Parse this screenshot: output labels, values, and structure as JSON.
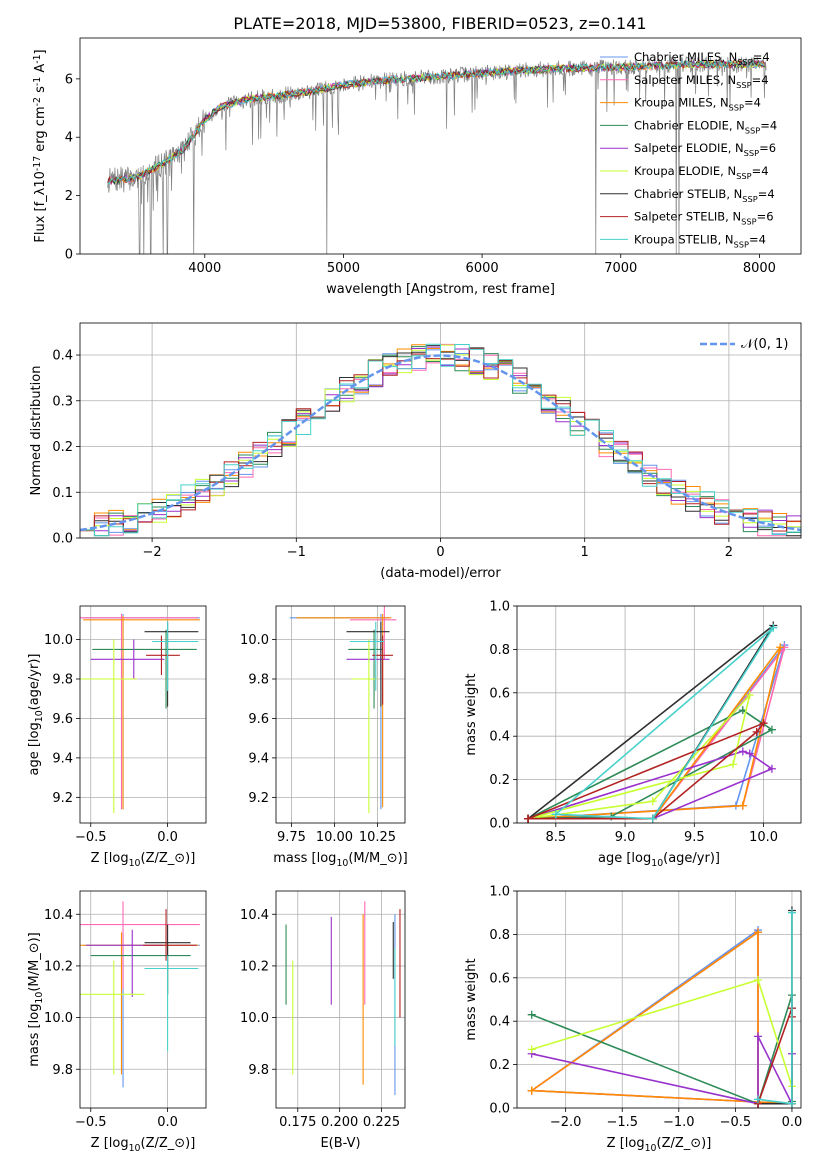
{
  "figure_title": "PLATE=2018, MJD=53800, FIBERID=0523, z=0.141",
  "colors": {
    "series": [
      "#6495ed",
      "#ff69b4",
      "#ff8c00",
      "#2e8b57",
      "#9932cc",
      "#c8ff32",
      "#2f2f2f",
      "#b22222",
      "#48d1cc"
    ],
    "data_spectrum": "#808080",
    "normal_curve": "#6495ed"
  },
  "models": [
    {
      "name": "Chabrier MILES, N$_{SSP}$=4",
      "imf": "Chabrier",
      "lib": "MILES",
      "nssp": "4"
    },
    {
      "name": "Salpeter MILES, N$_{SSP}$=4",
      "imf": "Salpeter",
      "lib": "MILES",
      "nssp": "4"
    },
    {
      "name": "Kroupa MILES, N$_{SSP}$=4",
      "imf": "Kroupa",
      "lib": "MILES",
      "nssp": "4"
    },
    {
      "name": "Chabrier ELODIE, N$_{SSP}$=4",
      "imf": "Chabrier",
      "lib": "ELODIE",
      "nssp": "4"
    },
    {
      "name": "Salpeter ELODIE, N$_{SSP}$=6",
      "imf": "Salpeter",
      "lib": "ELODIE",
      "nssp": "6"
    },
    {
      "name": "Kroupa ELODIE, N$_{SSP}$=4",
      "imf": "Kroupa",
      "lib": "ELODIE",
      "nssp": "4"
    },
    {
      "name": "Chabrier STELIB, N$_{SSP}$=4",
      "imf": "Chabrier",
      "lib": "STELIB",
      "nssp": "4"
    },
    {
      "name": "Salpeter STELIB, N$_{SSP}$=6",
      "imf": "Salpeter",
      "lib": "STELIB",
      "nssp": "6"
    },
    {
      "name": "Kroupa STELIB, N$_{SSP}$=4",
      "imf": "Kroupa",
      "lib": "STELIB",
      "nssp": "4"
    }
  ],
  "chart_data": [
    {
      "id": "spectrum",
      "type": "line",
      "xlabel": "wavelength [Angstrom, rest frame]",
      "ylabel": "Flux [f$_\\lambda$10$^{-17}$ erg cm$^{-2}$ s$^{-1}$ A$^{-1}$]",
      "xlim": [
        3100,
        8300
      ],
      "ylim": [
        0,
        7.4
      ],
      "xticks": [
        4000,
        5000,
        6000,
        7000,
        8000
      ],
      "yticks": [
        0,
        2,
        4,
        6
      ],
      "grid": false,
      "legend": "upper right",
      "continuum_knots": {
        "x": [
          3300,
          3500,
          3700,
          3850,
          4000,
          4100,
          4300,
          4500,
          4800,
          5000,
          5300,
          5600,
          6000,
          6500,
          7000,
          7500,
          8000,
          8050
        ],
        "y": [
          2.5,
          2.6,
          3.1,
          3.6,
          4.6,
          5.0,
          5.3,
          5.4,
          5.6,
          5.8,
          5.95,
          6.05,
          6.2,
          6.35,
          6.4,
          6.5,
          6.5,
          6.45
        ]
      },
      "data_range": [
        3300,
        8050
      ],
      "dropouts": [
        3530,
        3560,
        3610,
        3700,
        3730,
        3920,
        4880,
        6820,
        7400,
        7420
      ]
    },
    {
      "id": "residuals",
      "type": "histogram",
      "xlabel": "(data-model)/error",
      "ylabel": "Normed distribution",
      "xlim": [
        -2.5,
        2.5
      ],
      "ylim": [
        0,
        0.47
      ],
      "xticks": [
        -2,
        -1,
        0,
        1,
        2
      ],
      "yticks": [
        0.0,
        0.1,
        0.2,
        0.3,
        0.4
      ],
      "grid": true,
      "legend": "upper right",
      "legend_label": "$\\mathcal{N}(0, 1)$",
      "bin_width": 0.1,
      "bin_start": -2.5
    },
    {
      "id": "age-vs-Z",
      "type": "errorbar",
      "xlabel": "Z [log$_{10}$(Z/Z$_\\odot$)]",
      "ylabel": "age  [log$_{10}$(age/yr)]",
      "xlim": [
        -0.57,
        0.25
      ],
      "ylim": [
        9.07,
        10.17
      ],
      "xticks": [
        -0.5,
        0.0
      ],
      "yticks": [
        9.2,
        9.4,
        9.6,
        9.8,
        10.0
      ],
      "grid": true,
      "points": [
        {
          "x": -0.29,
          "y": 10.11,
          "xerr": [
            0.26,
            0.5
          ],
          "yerr": [
            0.97,
            0.02
          ]
        },
        {
          "x": -0.3,
          "y": 10.11,
          "xerr": [
            0.27,
            0.5
          ],
          "yerr": [
            0.97,
            0.02
          ]
        },
        {
          "x": -0.29,
          "y": 10.1,
          "xerr": [
            0.26,
            0.5
          ],
          "yerr": [
            0.96,
            0.02
          ]
        },
        {
          "x": -0.01,
          "y": 9.95,
          "xerr": [
            0.48,
            0.2
          ],
          "yerr": [
            0.3,
            0.1
          ]
        },
        {
          "x": -0.22,
          "y": 9.9,
          "xerr": [
            0.28,
            0.2
          ],
          "yerr": [
            0.1,
            0.1
          ]
        },
        {
          "x": -0.35,
          "y": 9.8,
          "xerr": [
            0.25,
            0.15
          ],
          "yerr": [
            0.68,
            0.2
          ]
        },
        {
          "x": 0.0,
          "y": 10.04,
          "xerr": [
            0.15,
            0.2
          ],
          "yerr": [
            0.38,
            0.05
          ]
        },
        {
          "x": -0.04,
          "y": 9.92,
          "xerr": [
            0.1,
            0.12
          ],
          "yerr": [
            0.1,
            0.1
          ]
        },
        {
          "x": 0.0,
          "y": 9.99,
          "xerr": [
            0.1,
            0.2
          ],
          "yerr": [
            0.25,
            0.1
          ]
        }
      ]
    },
    {
      "id": "age-vs-mass",
      "type": "errorbar",
      "xlabel": "mass [log$_{10}$(M/M$_\\odot$)]",
      "ylabel": "",
      "xlim": [
        9.66,
        10.41
      ],
      "ylim": [
        9.07,
        10.17
      ],
      "xticks": [
        9.75,
        10.0,
        10.25
      ],
      "xticklabels": [
        "9.75",
        "10.00",
        "10.25"
      ],
      "yticks": [
        9.2,
        9.4,
        9.6,
        9.8,
        10.0
      ],
      "grid": true,
      "points": [
        {
          "x": 10.27,
          "y": 10.11,
          "xerr": [
            0.53,
            0.05
          ],
          "yerr": [
            0.97,
            0.02
          ]
        },
        {
          "x": 10.29,
          "y": 10.1,
          "xerr": [
            0.2,
            0.07
          ],
          "yerr": [
            0.2,
            0.08
          ]
        },
        {
          "x": 10.28,
          "y": 10.11,
          "xerr": [
            0.5,
            0.05
          ],
          "yerr": [
            0.96,
            0.02
          ]
        },
        {
          "x": 10.23,
          "y": 9.95,
          "xerr": [
            0.15,
            0.05
          ],
          "yerr": [
            0.3,
            0.1
          ]
        },
        {
          "x": 10.27,
          "y": 9.9,
          "xerr": [
            0.2,
            0.05
          ],
          "yerr": [
            0.1,
            0.1
          ]
        },
        {
          "x": 10.2,
          "y": 9.8,
          "xerr": [
            0.1,
            0.05
          ],
          "yerr": [
            0.68,
            0.2
          ]
        },
        {
          "x": 10.27,
          "y": 10.04,
          "xerr": [
            0.2,
            0.05
          ],
          "yerr": [
            0.38,
            0.05
          ]
        },
        {
          "x": 10.28,
          "y": 9.92,
          "xerr": [
            0.06,
            0.06
          ],
          "yerr": [
            0.25,
            0.1
          ]
        },
        {
          "x": 10.24,
          "y": 9.99,
          "xerr": [
            0.15,
            0.05
          ],
          "yerr": [
            0.25,
            0.1
          ]
        }
      ]
    },
    {
      "id": "weight-vs-age",
      "type": "line",
      "xlabel": "age  [log$_{10}$(age/yr)]",
      "ylabel": "mass weight",
      "xlim": [
        8.22,
        10.27
      ],
      "ylim": [
        0,
        1.0
      ],
      "xticks": [
        8.5,
        9.0,
        9.5,
        10.0
      ],
      "yticks": [
        0.0,
        0.2,
        0.4,
        0.6,
        0.8,
        1.0
      ],
      "grid": true,
      "series": [
        {
          "x": [
            8.3,
            9.8,
            10.15,
            9.2,
            8.3
          ],
          "y": [
            0.02,
            0.08,
            0.82,
            0.02,
            0.02
          ]
        },
        {
          "x": [
            8.3,
            9.85,
            10.15,
            9.2,
            8.3
          ],
          "y": [
            0.02,
            0.08,
            0.81,
            0.02,
            0.02
          ]
        },
        {
          "x": [
            8.3,
            9.85,
            10.12,
            9.2,
            8.3
          ],
          "y": [
            0.02,
            0.08,
            0.81,
            0.02,
            0.02
          ]
        },
        {
          "x": [
            8.3,
            9.85,
            10.06,
            8.9,
            8.3
          ],
          "y": [
            0.02,
            0.52,
            0.43,
            0.03,
            0.02
          ]
        },
        {
          "x": [
            8.3,
            9.85,
            9.9,
            10.06,
            9.2,
            8.3
          ],
          "y": [
            0.02,
            0.33,
            0.32,
            0.25,
            0.02,
            0.02
          ]
        },
        {
          "x": [
            8.3,
            9.78,
            9.9,
            9.2,
            8.3
          ],
          "y": [
            0.02,
            0.27,
            0.59,
            0.1,
            0.02
          ]
        },
        {
          "x": [
            8.3,
            10.07,
            9.2,
            8.3
          ],
          "y": [
            0.02,
            0.91,
            0.02,
            0.02
          ]
        },
        {
          "x": [
            8.3,
            10.0,
            9.95,
            9.2,
            8.3
          ],
          "y": [
            0.02,
            0.46,
            0.42,
            0.02,
            0.02
          ]
        },
        {
          "x": [
            8.5,
            10.07,
            9.2,
            8.5
          ],
          "y": [
            0.04,
            0.9,
            0.02,
            0.04
          ]
        }
      ]
    },
    {
      "id": "mass-vs-Z",
      "type": "errorbar",
      "xlabel": "Z [log$_{10}$(Z/Z$_\\odot$)]",
      "ylabel": "mass [log$_{10}$(M/M$_\\odot$)]",
      "xlim": [
        -0.57,
        0.25
      ],
      "ylim": [
        9.65,
        10.49
      ],
      "xticks": [
        -0.5,
        0.0
      ],
      "yticks": [
        9.8,
        10.0,
        10.2,
        10.4
      ],
      "grid": true,
      "points": [
        {
          "x": -0.29,
          "y": 10.28,
          "xerr": [
            0.26,
            0.5
          ],
          "yerr": [
            0.55,
            0.05
          ]
        },
        {
          "x": -0.29,
          "y": 10.36,
          "xerr": [
            0.3,
            0.5
          ],
          "yerr": [
            0.25,
            0.09
          ]
        },
        {
          "x": -0.3,
          "y": 10.28,
          "xerr": [
            0.27,
            0.5
          ],
          "yerr": [
            0.5,
            0.05
          ]
        },
        {
          "x": 0.0,
          "y": 10.24,
          "xerr": [
            0.5,
            0.15
          ],
          "yerr": [
            0.15,
            0.05
          ]
        },
        {
          "x": -0.23,
          "y": 10.28,
          "xerr": [
            0.3,
            0.2
          ],
          "yerr": [
            0.2,
            0.06
          ]
        },
        {
          "x": -0.35,
          "y": 10.09,
          "xerr": [
            0.22,
            0.2
          ],
          "yerr": [
            0.31,
            0.13
          ]
        },
        {
          "x": 0.0,
          "y": 10.29,
          "xerr": [
            0.15,
            0.15
          ],
          "yerr": [
            0.2,
            0.07
          ]
        },
        {
          "x": -0.01,
          "y": 10.28,
          "xerr": [
            0.15,
            0.2
          ],
          "yerr": [
            0.06,
            0.14
          ]
        },
        {
          "x": 0.0,
          "y": 10.19,
          "xerr": [
            0.15,
            0.2
          ],
          "yerr": [
            0.32,
            0.05
          ]
        }
      ]
    },
    {
      "id": "mass-vs-ebv",
      "type": "errorbar",
      "xlabel": "E(B-V)",
      "ylabel": "",
      "xlim": [
        0.162,
        0.239
      ],
      "ylim": [
        9.65,
        10.49
      ],
      "xticks": [
        0.175,
        0.2,
        0.225
      ],
      "xticklabels": [
        "0.175",
        "0.200",
        "0.225"
      ],
      "yticks": [
        9.8,
        10.0,
        10.2,
        10.4
      ],
      "grid": true,
      "points": [
        {
          "x": 0.233,
          "y": 10.3,
          "yerr": [
            0.6,
            0.1
          ]
        },
        {
          "x": 0.215,
          "y": 10.3,
          "yerr": [
            0.25,
            0.15
          ]
        },
        {
          "x": 0.214,
          "y": 10.3,
          "yerr": [
            0.56,
            0.1
          ]
        },
        {
          "x": 0.168,
          "y": 10.24,
          "yerr": [
            0.19,
            0.12
          ]
        },
        {
          "x": 0.195,
          "y": 10.27,
          "yerr": [
            0.22,
            0.12
          ]
        },
        {
          "x": 0.172,
          "y": 10.08,
          "yerr": [
            0.3,
            0.14
          ]
        },
        {
          "x": 0.232,
          "y": 10.3,
          "yerr": [
            0.15,
            0.07
          ]
        },
        {
          "x": 0.236,
          "y": 10.3,
          "yerr": [
            0.3,
            0.12
          ]
        },
        {
          "x": 0.233,
          "y": 10.19,
          "yerr": [
            0.3,
            0.08
          ]
        }
      ]
    },
    {
      "id": "weight-vs-Z",
      "type": "line",
      "xlabel": "Z [log$_{10}$(Z/Z$_\\odot$)]",
      "ylabel": "mass weight",
      "xlim": [
        -2.43,
        0.08
      ],
      "ylim": [
        0,
        1.0
      ],
      "xticks": [
        -2.0,
        -1.5,
        -1.0,
        -0.5,
        0.0
      ],
      "yticks": [
        0.0,
        0.2,
        0.4,
        0.6,
        0.8,
        1.0
      ],
      "grid": true,
      "series": [
        {
          "x": [
            -2.3,
            -0.3,
            -0.3,
            0.0,
            -2.3
          ],
          "y": [
            0.08,
            0.82,
            0.02,
            0.02,
            0.08
          ]
        },
        {
          "x": [
            -2.3,
            -0.3,
            -0.3,
            0.0,
            -2.3
          ],
          "y": [
            0.08,
            0.81,
            0.02,
            0.02,
            0.08
          ]
        },
        {
          "x": [
            -2.3,
            -0.3,
            -0.3,
            0.0,
            -2.3
          ],
          "y": [
            0.08,
            0.81,
            0.02,
            0.02,
            0.08
          ]
        },
        {
          "x": [
            -2.3,
            -0.3,
            0.0,
            0.0
          ],
          "y": [
            0.43,
            0.02,
            0.52,
            0.03
          ]
        },
        {
          "x": [
            -2.3,
            -0.3,
            -0.3,
            0.0,
            0.0
          ],
          "y": [
            0.25,
            0.02,
            0.33,
            0.02,
            0.25
          ]
        },
        {
          "x": [
            -2.3,
            -0.3,
            0.0,
            0.0
          ],
          "y": [
            0.27,
            0.59,
            0.1,
            0.02
          ]
        },
        {
          "x": [
            -0.3,
            0.0,
            0.0
          ],
          "y": [
            0.02,
            0.02,
            0.91
          ]
        },
        {
          "x": [
            -0.3,
            0.0,
            0.0
          ],
          "y": [
            0.02,
            0.46,
            0.42
          ]
        },
        {
          "x": [
            -0.3,
            0.0,
            0.0
          ],
          "y": [
            0.04,
            0.02,
            0.9
          ]
        }
      ]
    }
  ]
}
